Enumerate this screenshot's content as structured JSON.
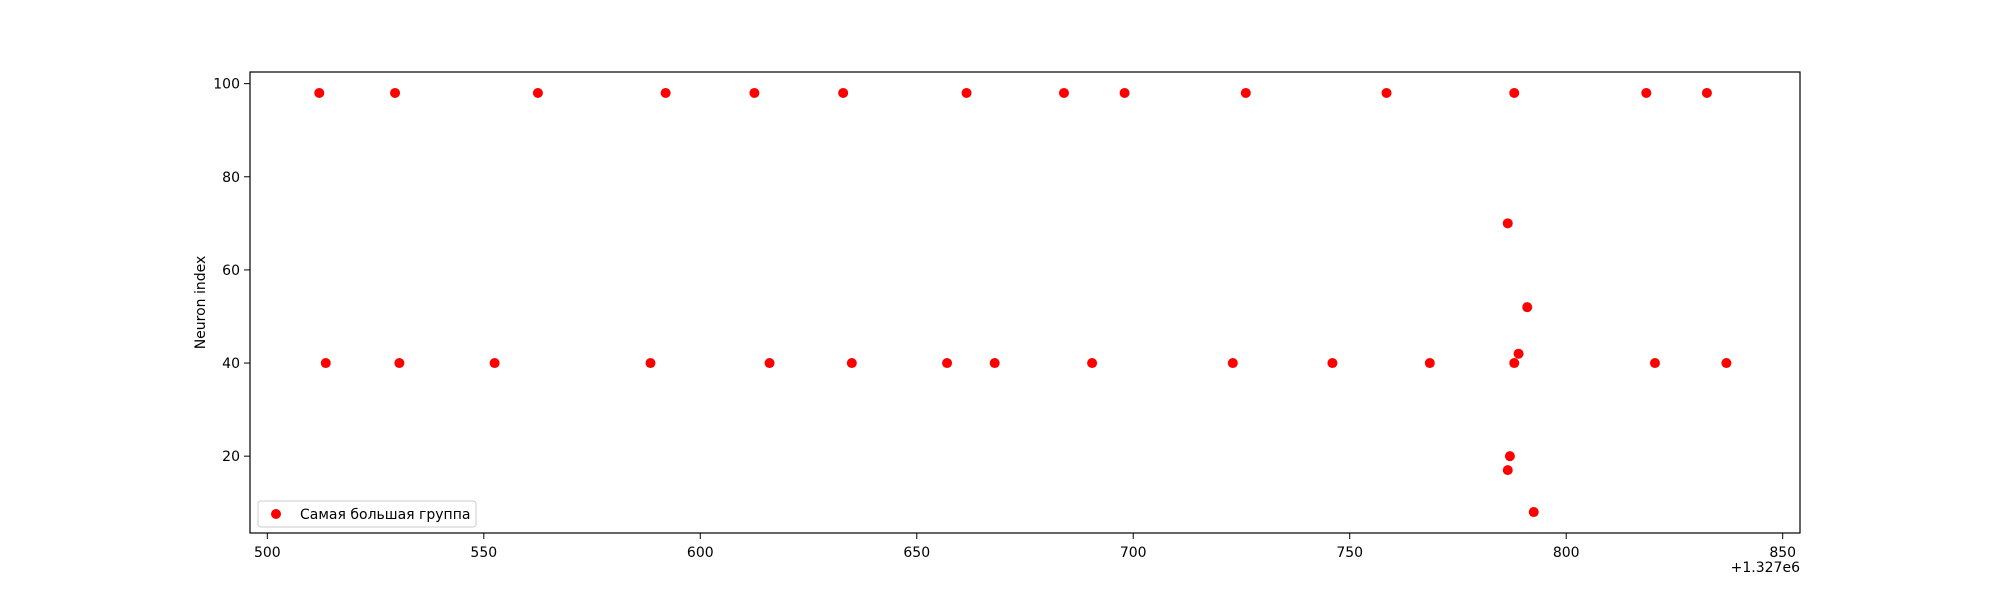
{
  "chart_data": {
    "type": "scatter",
    "title": "",
    "xlabel": "",
    "ylabel": "Neuron index",
    "x_offset_label": "+1.327e6",
    "xlim": [
      496,
      854
    ],
    "ylim": [
      3.5,
      102.5
    ],
    "x_ticks": [
      500,
      550,
      600,
      650,
      700,
      750,
      800,
      850
    ],
    "x_tick_labels": [
      "500",
      "550",
      "600",
      "650",
      "700",
      "750",
      "800",
      "850"
    ],
    "y_ticks": [
      20,
      40,
      60,
      80,
      100
    ],
    "y_tick_labels": [
      "20",
      "40",
      "60",
      "80",
      "100"
    ],
    "grid": false,
    "legend": {
      "position": "lower-left"
    },
    "series": [
      {
        "name": "Самая большая группа",
        "color": "#ff0000",
        "marker": "circle",
        "points": [
          [
            512,
            98
          ],
          [
            529.5,
            98
          ],
          [
            562.5,
            98
          ],
          [
            592,
            98
          ],
          [
            612.5,
            98
          ],
          [
            633,
            98
          ],
          [
            661.5,
            98
          ],
          [
            684,
            98
          ],
          [
            698,
            98
          ],
          [
            726,
            98
          ],
          [
            758.5,
            98
          ],
          [
            788,
            98
          ],
          [
            818.5,
            98
          ],
          [
            832.5,
            98
          ],
          [
            513.5,
            40
          ],
          [
            530.5,
            40
          ],
          [
            552.5,
            40
          ],
          [
            588.5,
            40
          ],
          [
            616,
            40
          ],
          [
            635,
            40
          ],
          [
            657,
            40
          ],
          [
            668,
            40
          ],
          [
            690.5,
            40
          ],
          [
            723,
            40
          ],
          [
            746,
            40
          ],
          [
            768.5,
            40
          ],
          [
            788,
            40
          ],
          [
            820.5,
            40
          ],
          [
            837,
            40
          ],
          [
            786.5,
            70
          ],
          [
            791,
            52
          ],
          [
            789,
            42
          ],
          [
            787,
            20
          ],
          [
            786.5,
            17
          ],
          [
            792.5,
            8
          ]
        ]
      }
    ]
  }
}
